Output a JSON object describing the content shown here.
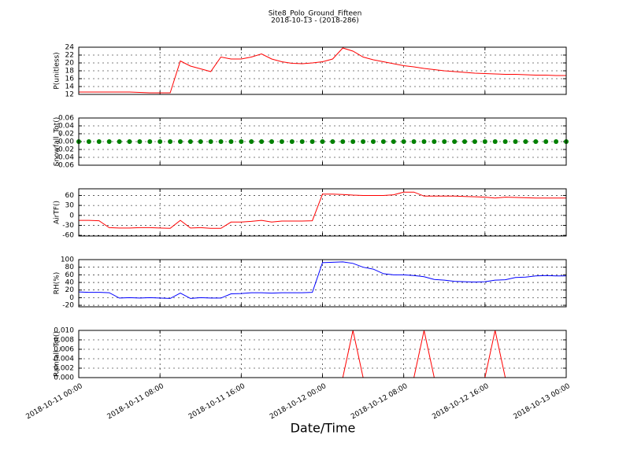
{
  "chart_data": {
    "type": "subplots",
    "title": "Site8_Polo_Ground_Fifteen",
    "subtitle": "2018-10-13 - (2018-286)",
    "xlabel": "Date/Time",
    "xlim": [
      "2018-10-11 00:00",
      "2018-10-13 00:00"
    ],
    "xticks": [
      "2018-10-11 00:00",
      "2018-10-11 08:00",
      "2018-10-11 16:00",
      "2018-10-12 00:00",
      "2018-10-12 08:00",
      "2018-10-12 16:00",
      "2018-10-13 00:00"
    ],
    "grid": true,
    "x": [
      "2018-10-11 00:00",
      "2018-10-11 01:00",
      "2018-10-11 02:00",
      "2018-10-11 03:00",
      "2018-10-11 04:00",
      "2018-10-11 05:00",
      "2018-10-11 06:00",
      "2018-10-11 07:00",
      "2018-10-11 08:00",
      "2018-10-11 09:00",
      "2018-10-11 10:00",
      "2018-10-11 11:00",
      "2018-10-11 12:00",
      "2018-10-11 13:00",
      "2018-10-11 14:00",
      "2018-10-11 15:00",
      "2018-10-11 16:00",
      "2018-10-11 17:00",
      "2018-10-11 18:00",
      "2018-10-11 19:00",
      "2018-10-11 20:00",
      "2018-10-11 21:00",
      "2018-10-11 22:00",
      "2018-10-11 23:00",
      "2018-10-12 00:00",
      "2018-10-12 01:00",
      "2018-10-12 02:00",
      "2018-10-12 03:00",
      "2018-10-12 04:00",
      "2018-10-12 05:00",
      "2018-10-12 06:00",
      "2018-10-12 07:00",
      "2018-10-12 08:00",
      "2018-10-12 09:00",
      "2018-10-12 10:00",
      "2018-10-12 11:00",
      "2018-10-12 12:00",
      "2018-10-12 13:00",
      "2018-10-12 14:00",
      "2018-10-12 15:00",
      "2018-10-12 16:00",
      "2018-10-12 17:00",
      "2018-10-12 18:00",
      "2018-10-12 19:00",
      "2018-10-12 20:00",
      "2018-10-12 21:00",
      "2018-10-12 22:00",
      "2018-10-12 23:00",
      "2018-10-13 00:00"
    ],
    "panels": [
      {
        "type": "line",
        "ylabel": "P(unitless)",
        "color": "#ff0000",
        "ylim": [
          12,
          24
        ],
        "yticks": [
          12,
          14,
          16,
          18,
          20,
          22,
          24
        ],
        "values": [
          12.6,
          12.6,
          12.6,
          12.6,
          12.6,
          12.6,
          12.5,
          12.4,
          12.4,
          12.4,
          20.5,
          19.2,
          18.5,
          17.8,
          21.5,
          21,
          21,
          21.5,
          22.3,
          21,
          20.3,
          19.9,
          19.8,
          20,
          20.3,
          21,
          23.8,
          23,
          21.5,
          20.8,
          20.3,
          19.8,
          19.3,
          19,
          18.6,
          18.3,
          18,
          17.8,
          17.6,
          17.4,
          17.3,
          17.2,
          17.1,
          17.1,
          17,
          16.9,
          16.9,
          16.8,
          16.8
        ]
      },
      {
        "type": "scatter",
        "ylabel": "Snowfall_Tot()",
        "color": "#008000",
        "ylim": [
          -0.06,
          0.06
        ],
        "yticks": [
          -0.06,
          -0.04,
          -0.02,
          {
            "value": 0,
            "label": "0.00"
          },
          0.02,
          0.04,
          0.06
        ],
        "values": [
          0,
          0,
          0,
          0,
          0,
          0,
          0,
          0,
          0,
          0,
          0,
          0,
          0,
          0,
          0,
          0,
          0,
          0,
          0,
          0,
          0,
          0,
          0,
          0,
          0,
          0,
          0,
          0,
          0,
          0,
          0,
          0,
          0,
          0,
          0,
          0,
          0,
          0,
          0,
          0,
          0,
          0,
          0,
          0,
          0,
          0,
          0,
          0,
          0
        ]
      },
      {
        "type": "line",
        "ylabel": "AirTF()",
        "color": "#ff0000",
        "ylim": [
          -62,
          80
        ],
        "yticks": [
          -60,
          -30,
          0,
          30,
          60
        ],
        "values": [
          -15,
          -15,
          -16,
          -37,
          -38,
          -38,
          -37,
          -37,
          -38,
          -39,
          -15,
          -38,
          -37,
          -39,
          -39,
          -20,
          -20,
          -18,
          -15,
          -20,
          -17,
          -17,
          -17,
          -16,
          64,
          64,
          63,
          61,
          60,
          60,
          60,
          62,
          70,
          70,
          58,
          58,
          58,
          58,
          57,
          56,
          55,
          52,
          55,
          54,
          53,
          52,
          52,
          52,
          52
        ]
      },
      {
        "type": "line",
        "ylabel": "RH(%)",
        "color": "#0000ff",
        "ylim": [
          -24,
          100
        ],
        "yticks": [
          -20,
          0,
          20,
          40,
          60,
          80,
          100
        ],
        "values": [
          15,
          14,
          14,
          13,
          -1,
          0,
          -1,
          0,
          -1,
          -2,
          12,
          -2,
          0,
          -1,
          -1,
          10,
          11,
          13,
          13,
          12,
          13,
          13,
          13,
          14,
          92,
          93,
          94,
          90,
          80,
          75,
          63,
          60,
          60,
          58,
          55,
          48,
          46,
          43,
          42,
          41,
          42,
          46,
          47,
          53,
          54,
          57,
          58,
          57,
          57
        ]
      },
      {
        "type": "line",
        "ylabel": "Rainfall_Tot()",
        "color": "#ff0000",
        "ylim": [
          0,
          0.01
        ],
        "yticks": [
          {
            "value": 0,
            "label": "0.000"
          },
          {
            "value": 0.002,
            "label": "0.002"
          },
          {
            "value": 0.004,
            "label": "0.004"
          },
          {
            "value": 0.006,
            "label": "0.006"
          },
          {
            "value": 0.008,
            "label": "0.008"
          },
          {
            "value": 0.01,
            "label": "0.010"
          }
        ],
        "values": [
          0,
          0,
          0,
          0,
          0,
          0,
          0,
          0,
          0,
          0,
          0,
          0,
          0,
          0,
          0,
          0,
          0,
          0,
          0,
          0,
          0,
          0,
          0,
          0,
          0,
          0,
          0,
          0.01,
          0,
          0,
          0,
          0,
          0,
          0,
          0.01,
          0,
          0,
          0,
          0,
          0,
          0,
          0.01,
          0,
          0,
          0,
          0,
          0,
          0,
          0
        ]
      }
    ]
  }
}
